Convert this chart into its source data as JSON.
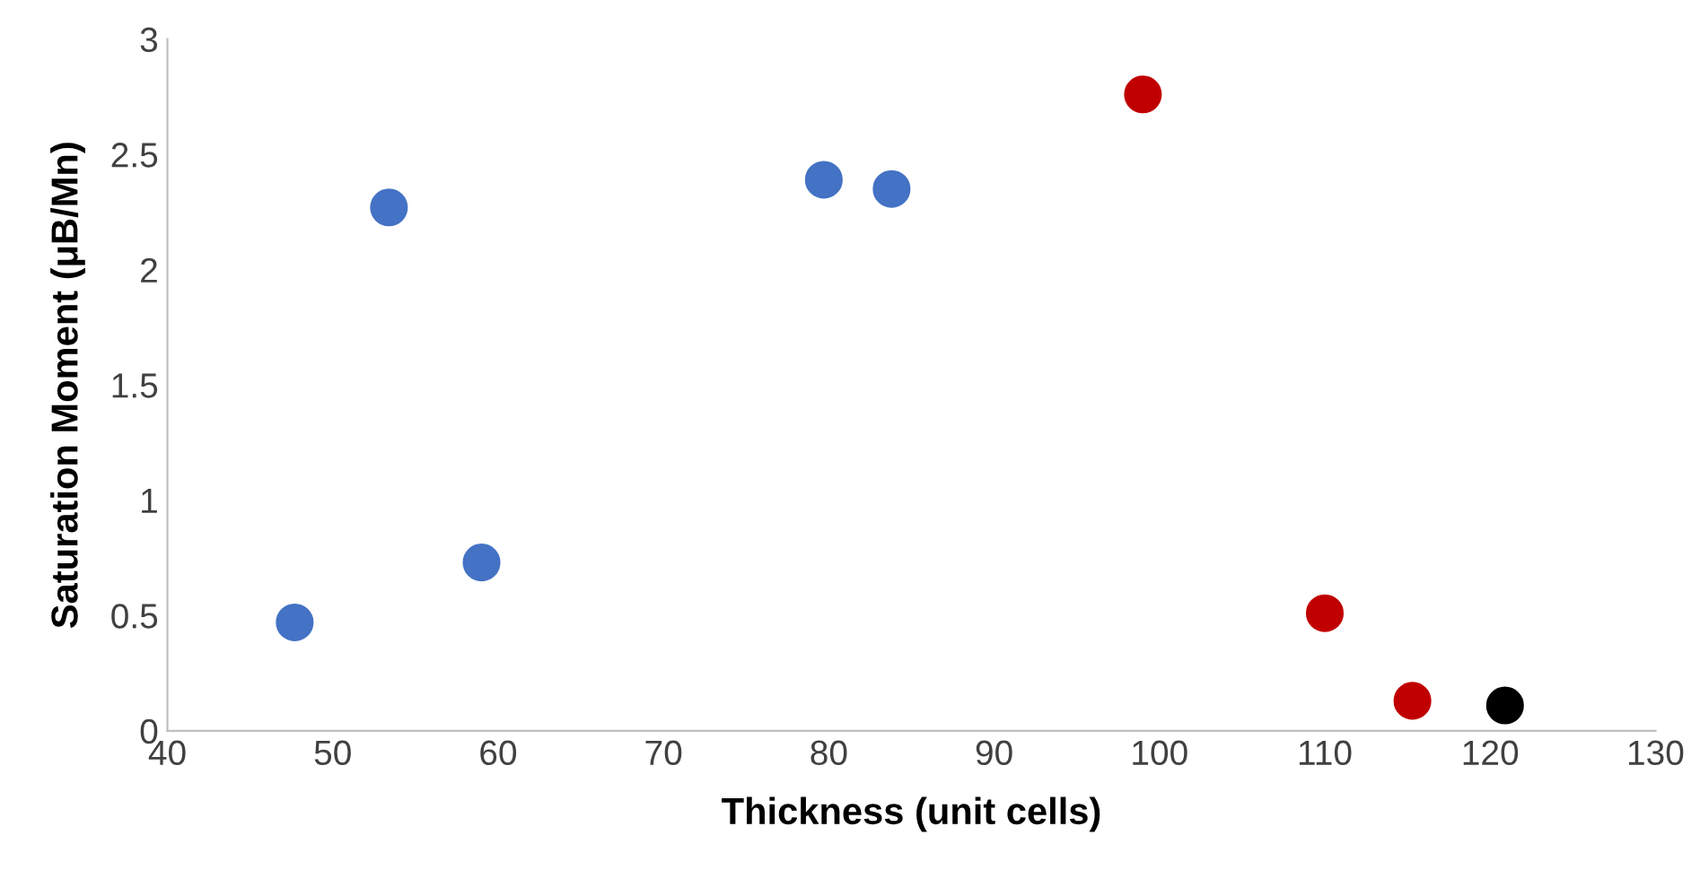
{
  "chart_data": {
    "type": "scatter",
    "xlabel": "Thickness (unit cells)",
    "ylabel": "Saturation Moment (μB/Mn)",
    "xlim": [
      40,
      130
    ],
    "xticks": [
      40,
      50,
      60,
      70,
      80,
      90,
      100,
      110,
      120,
      130
    ],
    "ylim": [
      0,
      3
    ],
    "yticks": [
      0,
      0.5,
      1,
      1.5,
      2,
      2.5,
      3
    ],
    "grid": false,
    "legend": false,
    "marker": "circle",
    "series": [
      {
        "color": "#4472c4",
        "x": [
          47.7,
          53.4,
          59.0,
          79.7,
          83.8
        ],
        "values": [
          0.47,
          2.27,
          0.73,
          2.39,
          2.35
        ]
      },
      {
        "color": "#c00000",
        "x": [
          99.0,
          110.0,
          115.3
        ],
        "values": [
          2.76,
          0.51,
          0.13
        ]
      },
      {
        "color": "#000000",
        "x": [
          120.9
        ],
        "values": [
          0.11
        ]
      }
    ]
  }
}
